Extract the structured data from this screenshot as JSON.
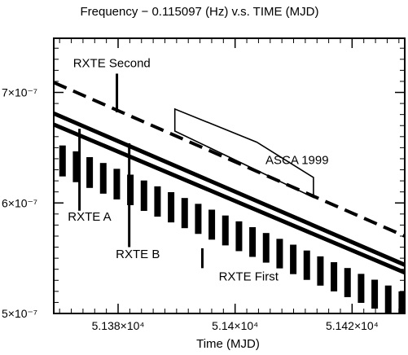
{
  "chart_data": {
    "type": "line",
    "title": "Frequency − 0.115097 (Hz) v.s. TIME (MJD)",
    "xlabel": "Time (MJD)",
    "ylabel": "",
    "xlim": [
      51369,
      51429
    ],
    "ylim": [
      5e-07,
      7.49e-07
    ],
    "x_ticks": [
      {
        "value": 51380,
        "label": "5.138×10⁴"
      },
      {
        "value": 51400,
        "label": "5.14×10⁴"
      },
      {
        "value": 51420,
        "label": "5.142×10⁴"
      }
    ],
    "y_ticks": [
      {
        "value": 5e-07,
        "label": "5×10⁻⁷"
      },
      {
        "value": 6e-07,
        "label": "6×10⁻⁷"
      },
      {
        "value": 7e-07,
        "label": "7×10⁻⁷"
      }
    ],
    "series": [
      {
        "name": "RXTE Second",
        "style": "dashed",
        "x": [
          51369,
          51429
        ],
        "y": [
          7.09e-07,
          5.7e-07
        ]
      },
      {
        "name": "RXTE A",
        "style": "band",
        "x": [
          51369,
          51429
        ],
        "y_upper": [
          6.81e-07,
          5.44e-07
        ],
        "y_lower": [
          6.71e-07,
          5.37e-07
        ]
      },
      {
        "name": "RXTE First",
        "style": "hatched-band",
        "x": [
          51370.5,
          51428.5
        ],
        "y_upper": [
          6.52e-07,
          5.2e-07
        ],
        "y_lower": [
          6.24e-07,
          4.94e-07
        ]
      },
      {
        "name": "ASCA 1999",
        "style": "polygon",
        "x": [
          51389.7,
          51389.7,
          51413.4,
          51413.4,
          51403.7
        ],
        "y": [
          6.85e-07,
          6.65e-07,
          6.05e-07,
          6.23e-07,
          6.55e-07
        ]
      }
    ],
    "annotations": [
      {
        "label": "RXTE Second",
        "text_x": 51372.3,
        "text_y": 7.23e-07,
        "pointer": [
          [
            51379.8,
            7.17e-07
          ],
          [
            51379.8,
            6.82e-07
          ]
        ]
      },
      {
        "label": "ASCA 1999",
        "text_x": 51405.2,
        "text_y": 6.35e-07,
        "pointer": []
      },
      {
        "label": "RXTE A",
        "text_x": 51371.4,
        "text_y": 5.84e-07,
        "pointer": [
          [
            51373.4,
            6.67e-07
          ],
          [
            51373.4,
            5.93e-07
          ]
        ]
      },
      {
        "label": "RXTE B",
        "text_x": 51379.6,
        "text_y": 5.5e-07,
        "pointer": [
          [
            51381.9,
            6.54e-07
          ],
          [
            51381.9,
            5.6e-07
          ]
        ]
      },
      {
        "label": "RXTE First",
        "text_x": 51397.2,
        "text_y": 5.3e-07,
        "pointer": [
          [
            51394.4,
            5.59e-07
          ],
          [
            51394.4,
            5.41e-07
          ]
        ]
      }
    ],
    "grid": false,
    "colors": {
      "foreground": "#000000",
      "background": "#ffffff"
    }
  }
}
